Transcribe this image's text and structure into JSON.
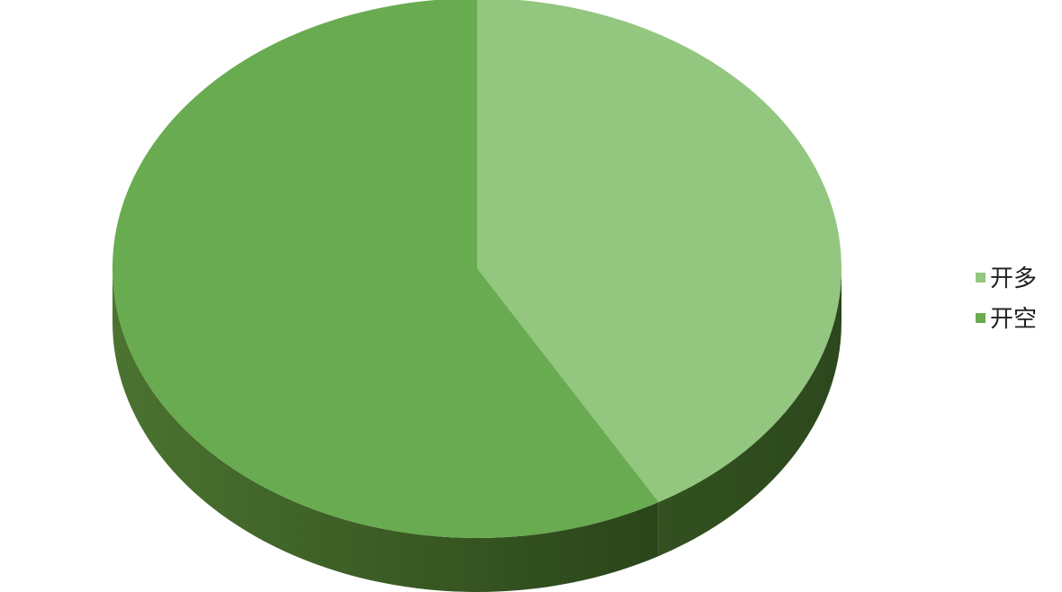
{
  "page": {
    "background_color": "#ffffff"
  },
  "chart_data": {
    "type": "pie",
    "style": "3d-pie",
    "title": "",
    "labels": [
      "开多",
      "开空"
    ],
    "values": [
      41.7,
      58.3
    ],
    "unit": "percent",
    "start_angle_deg": 90,
    "direction": "clockwise",
    "slices": [
      {
        "label": "开多",
        "value": 41.7,
        "color": "#93C67E",
        "side_color_left": "#33511F",
        "side_color_right": "#2C481D"
      },
      {
        "label": "开空",
        "value": 58.3,
        "color": "#69AB50",
        "side_color_left": "#4C7330",
        "side_color_right": "#2A451A"
      }
    ],
    "legend": {
      "position": "right",
      "text_color": "#1f1f1f",
      "items": [
        {
          "label": "开多",
          "color": "#93C67E"
        },
        {
          "label": "开空",
          "color": "#69AB50"
        }
      ]
    }
  }
}
